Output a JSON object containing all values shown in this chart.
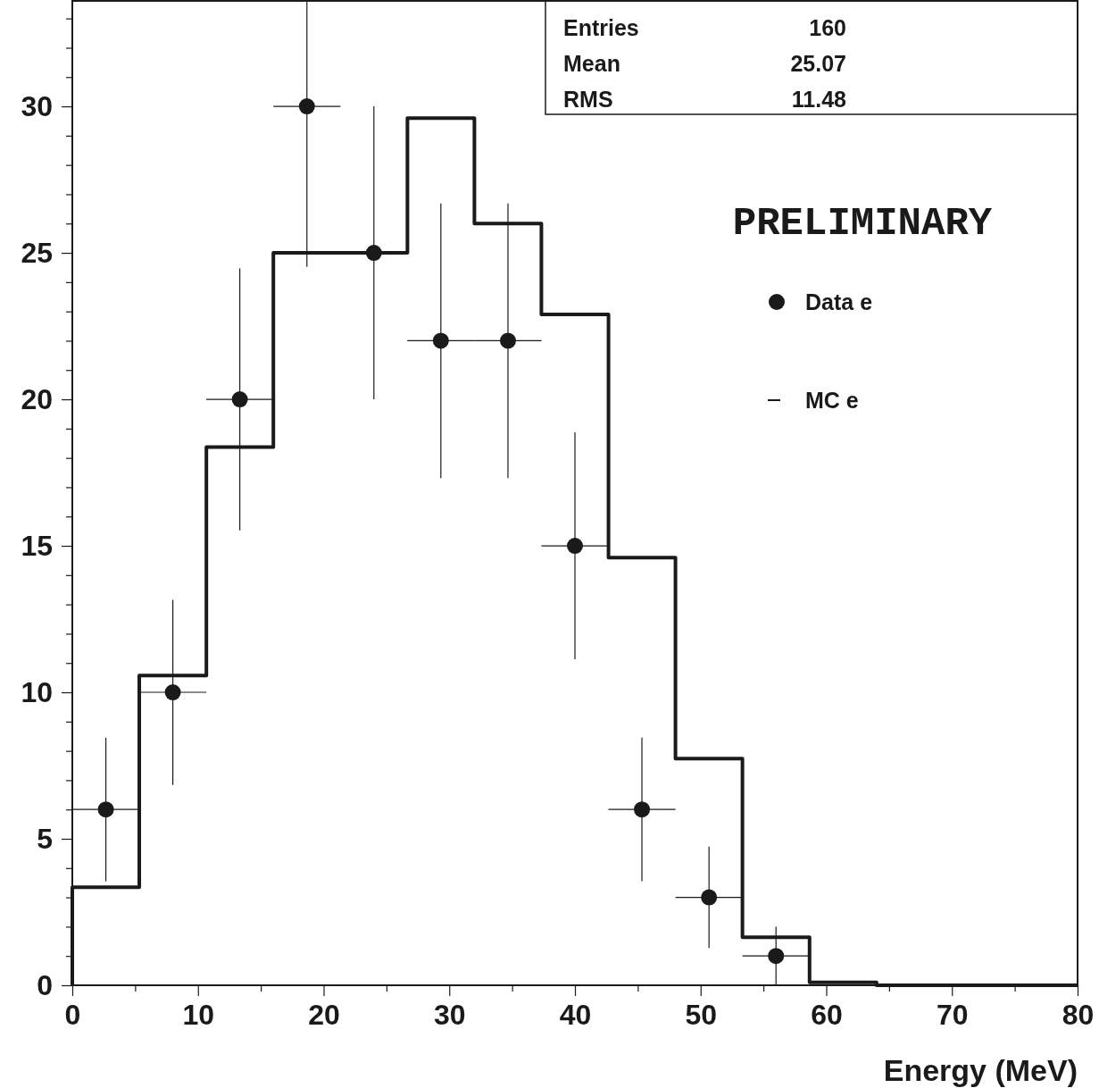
{
  "chart_data": {
    "type": "histogram",
    "xlabel": "Energy (MeV)",
    "xlim": [
      0,
      80
    ],
    "ylim": [
      0,
      33.6
    ],
    "xticks": [
      0,
      {
        "value": 5,
        "label": null
      },
      10,
      {
        "value": 15,
        "label": null
      },
      20,
      {
        "value": 25,
        "label": null
      },
      30,
      {
        "value": 35,
        "label": null
      },
      40,
      {
        "value": 45,
        "label": null
      },
      50,
      {
        "value": 55,
        "label": null
      },
      60,
      {
        "value": 65,
        "label": null
      },
      70,
      {
        "value": 75,
        "label": null
      },
      80
    ],
    "yticks": [
      0,
      {
        "value": 1,
        "label": null
      },
      {
        "value": 2,
        "label": null
      },
      {
        "value": 3,
        "label": null
      },
      {
        "value": 4,
        "label": null
      },
      5,
      {
        "value": 6,
        "label": null
      },
      {
        "value": 7,
        "label": null
      },
      {
        "value": 8,
        "label": null
      },
      {
        "value": 9,
        "label": null
      },
      10,
      {
        "value": 11,
        "label": null
      },
      {
        "value": 12,
        "label": null
      },
      {
        "value": 13,
        "label": null
      },
      {
        "value": 14,
        "label": null
      },
      15,
      {
        "value": 16,
        "label": null
      },
      {
        "value": 17,
        "label": null
      },
      {
        "value": 18,
        "label": null
      },
      {
        "value": 19,
        "label": null
      },
      20,
      {
        "value": 21,
        "label": null
      },
      {
        "value": 22,
        "label": null
      },
      {
        "value": 23,
        "label": null
      },
      {
        "value": 24,
        "label": null
      },
      25,
      {
        "value": 26,
        "label": null
      },
      {
        "value": 27,
        "label": null
      },
      {
        "value": 28,
        "label": null
      },
      {
        "value": 29,
        "label": null
      },
      30,
      {
        "value": 31,
        "label": null
      },
      {
        "value": 32,
        "label": null
      },
      {
        "value": 33,
        "label": null
      }
    ],
    "legend": "top right",
    "marker": "circle",
    "series": [
      {
        "type": "histogram",
        "name": "MC e",
        "color": "#1a1a1a",
        "bins": [
          0,
          5.33,
          10.67,
          16,
          21.33,
          26.67,
          32,
          37.33,
          42.67,
          48,
          53.33,
          58.67,
          64,
          69.33,
          74.67,
          80
        ],
        "values": [
          3.35,
          10.57,
          18.37,
          25,
          25,
          29.6,
          26,
          22.9,
          14.6,
          7.74,
          1.64,
          0.1,
          0,
          0,
          0
        ]
      },
      {
        "type": "scatter",
        "name": "Data e",
        "color": "#1a1a1a",
        "x": [
          2.67,
          8,
          13.33,
          18.67,
          24,
          29.33,
          34.67,
          40,
          45.33,
          50.67,
          56
        ],
        "values": [
          6,
          10,
          20,
          30,
          25,
          22,
          22,
          15,
          6,
          3,
          1
        ],
        "errors": [
          [
            3.55,
            8.45
          ],
          [
            6.84,
            13.16
          ],
          [
            15.53,
            24.47
          ],
          [
            24.52,
            33.6
          ],
          [
            20,
            30
          ],
          [
            17.31,
            26.69
          ],
          [
            17.31,
            26.69
          ],
          [
            11.13,
            18.87
          ],
          [
            3.55,
            8.45
          ],
          [
            1.27,
            4.73
          ],
          [
            0,
            2
          ]
        ],
        "xerrors": [
          2.67,
          2.67,
          2.67,
          2.67,
          2.67,
          2.67,
          2.67,
          2.67,
          2.67,
          2.67,
          2.67
        ]
      }
    ],
    "annotations": [
      "Entries",
      "160",
      "Mean",
      "25.07",
      "RMS",
      "11.48",
      "PRELIMINARY"
    ]
  }
}
